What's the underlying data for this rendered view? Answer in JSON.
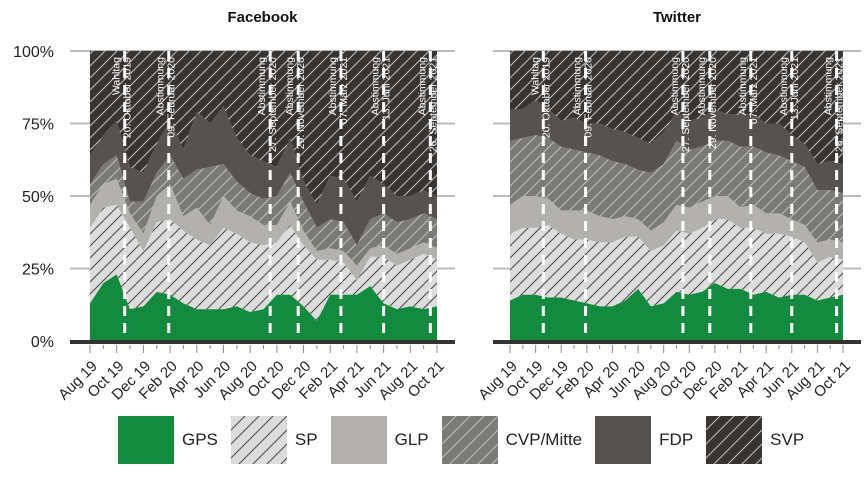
{
  "chart_data": {
    "type": "area",
    "stacked": true,
    "normalized": true,
    "ylim": [
      0,
      100
    ],
    "y_ticks": [
      "0%",
      "25%",
      "50%",
      "75%",
      "100%"
    ],
    "x_ticks": [
      "Aug 19",
      "Oct 19",
      "Dec 19",
      "Feb 20",
      "Apr 20",
      "Jun 20",
      "Aug 20",
      "Oct 20",
      "Dec 20",
      "Feb 21",
      "Apr 21",
      "Jun 21",
      "Aug 21",
      "Oct 21"
    ],
    "x": [
      "Aug 19",
      "Sep 19",
      "Oct 19",
      "Nov 19",
      "Dec 19",
      "Jan 20",
      "Feb 20",
      "Mar 20",
      "Apr 20",
      "May 20",
      "Jun 20",
      "Jul 20",
      "Aug 20",
      "Sep 20",
      "Oct 20",
      "Nov 20",
      "Dec 20",
      "Jan 21",
      "Feb 21",
      "Mar 21",
      "Apr 21",
      "May 21",
      "Jun 21",
      "Jul 21",
      "Aug 21",
      "Sep 21",
      "Oct 21"
    ],
    "events": [
      {
        "label": [
          "Wahltag",
          "20. Oktober 2019"
        ],
        "x": 2.6
      },
      {
        "label": [
          "Abstimmung",
          "09. Februar 2020"
        ],
        "x": 5.9
      },
      {
        "label": [
          "Abstimmung",
          "27. September 2020"
        ],
        "x": 13.5
      },
      {
        "label": [
          "Abstimmung",
          "29. November 2020"
        ],
        "x": 15.6
      },
      {
        "label": [
          "Abstimmung",
          "07. März 2021"
        ],
        "x": 18.8
      },
      {
        "label": [
          "Abstimmung",
          "13. Juni 2021"
        ],
        "x": 22.0
      },
      {
        "label": [
          "Abstimmung",
          "26. September 2021"
        ],
        "x": 25.5
      }
    ],
    "panels": [
      {
        "title": "Facebook",
        "series": [
          {
            "name": "GPS",
            "values": [
              13,
              20,
              23,
              11,
              12,
              17,
              16,
              13,
              11,
              11,
              11,
              12,
              10,
              11,
              16,
              16,
              12,
              7,
              16,
              16,
              16,
              19,
              13,
              11,
              12,
              11,
              12
            ]
          },
          {
            "name": "SP",
            "values": [
              26,
              26,
              24,
              28,
              19,
              24,
              26,
              25,
              24,
              22,
              28,
              25,
              24,
              22,
              18,
              24,
              21,
              21,
              12,
              11,
              5,
              10,
              16,
              15,
              16,
              19,
              16
            ]
          },
          {
            "name": "GLP",
            "values": [
              8,
              8,
              9,
              5,
              6,
              9,
              12,
              5,
              11,
              7,
              11,
              8,
              9,
              7,
              6,
              8,
              5,
              3,
              4,
              4,
              5,
              3,
              4,
              4,
              4,
              4,
              4
            ]
          },
          {
            "name": "CVP/Mitte",
            "values": [
              7,
              7,
              8,
              4,
              11,
              8,
              10,
              13,
              13,
              20,
              11,
              10,
              8,
              9,
              10,
              10,
              10,
              8,
              10,
              10,
              7,
              10,
              11,
              11,
              10,
              10,
              10
            ]
          },
          {
            "name": "FDP",
            "values": [
              10,
              10,
              12,
              12,
              10,
              10,
              12,
              10,
              20,
              15,
              20,
              15,
              13,
              13,
              10,
              12,
              7,
              8,
              15,
              15,
              15,
              15,
              10,
              9,
              8,
              8,
              8
            ]
          },
          {
            "name": "SVP",
            "values": [
              36,
              29,
              24,
              40,
              42,
              32,
              24,
              34,
              21,
              25,
              19,
              30,
              36,
              38,
              40,
              30,
              45,
              53,
              43,
              44,
              52,
              43,
              46,
              50,
              50,
              48,
              50
            ]
          }
        ]
      },
      {
        "title": "Twitter",
        "series": [
          {
            "name": "GPS",
            "values": [
              14,
              16,
              16,
              15,
              15,
              14,
              13,
              12,
              12,
              14,
              18,
              12,
              13,
              17,
              16,
              17,
              20,
              18,
              18,
              16,
              17,
              15,
              16,
              16,
              14,
              15,
              16
            ]
          },
          {
            "name": "SP",
            "values": [
              23,
              23,
              23,
              25,
              22,
              21,
              22,
              22,
              22,
              22,
              18,
              19,
              20,
              21,
              21,
              22,
              22,
              24,
              21,
              23,
              20,
              22,
              20,
              18,
              13,
              14,
              12
            ]
          },
          {
            "name": "GLP",
            "values": [
              10,
              11,
              11,
              9,
              8,
              10,
              10,
              9,
              8,
              7,
              6,
              7,
              8,
              9,
              9,
              9,
              8,
              8,
              7,
              8,
              7,
              7,
              6,
              6,
              7,
              6,
              6
            ]
          },
          {
            "name": "CVP/Mitte",
            "values": [
              22,
              20,
              21,
              21,
              22,
              21,
              20,
              21,
              20,
              18,
              17,
              20,
              20,
              22,
              20,
              19,
              19,
              19,
              21,
              20,
              21,
              20,
              20,
              20,
              18,
              17,
              17
            ]
          },
          {
            "name": "FDP",
            "values": [
              11,
              10,
              12,
              10,
              9,
              11,
              10,
              11,
              11,
              11,
              11,
              10,
              11,
              10,
              10,
              10,
              11,
              9,
              11,
              11,
              10,
              11,
              9,
              8,
              9,
              10,
              10
            ]
          },
          {
            "name": "SVP",
            "values": [
              20,
              20,
              17,
              20,
              24,
              23,
              25,
              25,
              27,
              28,
              30,
              32,
              28,
              21,
              24,
              23,
              20,
              22,
              22,
              22,
              25,
              25,
              29,
              32,
              39,
              38,
              39
            ]
          }
        ]
      }
    ],
    "legend": [
      "GPS",
      "SP",
      "GLP",
      "CVP/Mitte",
      "FDP",
      "SVP"
    ],
    "legend_position": "bottom",
    "grid": true
  },
  "colors": {
    "GPS": "#138a3d",
    "SP": "#dcdcdc",
    "GLP": "#b3b1ae",
    "CVP/Mitte": "#7c7a77",
    "FDP": "#55524f",
    "SVP": "#373432",
    "hatched": [
      "SP",
      "CVP/Mitte",
      "SVP"
    ],
    "axis": "#333333",
    "grid": "#bbbbbb"
  }
}
